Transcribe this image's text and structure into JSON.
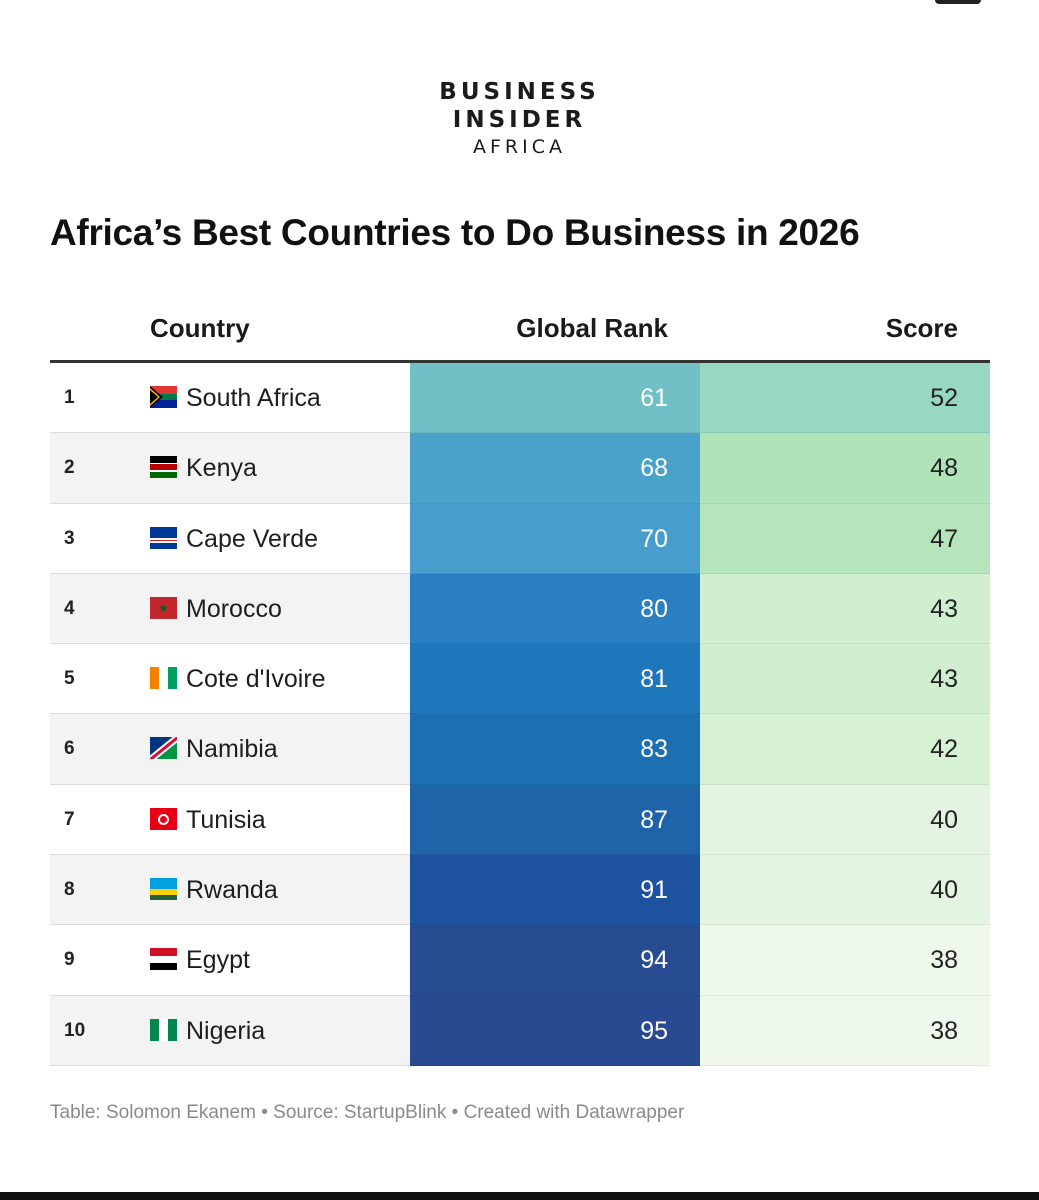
{
  "logo": {
    "line1": "BUSINESS",
    "line2": "INSIDER",
    "line3": "AFRICA"
  },
  "chart_data": {
    "type": "table",
    "title": "Africa’s Best Countries to Do Business in 2026",
    "columns": [
      "",
      "Country",
      "Global Rank",
      "Score"
    ],
    "rows": [
      {
        "n": "1",
        "country": "South Africa",
        "flag": "south-africa-flag-icon",
        "rank": 61,
        "score": 52
      },
      {
        "n": "2",
        "country": "Kenya",
        "flag": "kenya-flag-icon",
        "rank": 68,
        "score": 48
      },
      {
        "n": "3",
        "country": "Cape Verde",
        "flag": "cape-verde-flag-icon",
        "rank": 70,
        "score": 47
      },
      {
        "n": "4",
        "country": "Morocco",
        "flag": "morocco-flag-icon",
        "rank": 80,
        "score": 43
      },
      {
        "n": "5",
        "country": "Cote d'Ivoire",
        "flag": "cote-divoire-flag-icon",
        "rank": 81,
        "score": 43
      },
      {
        "n": "6",
        "country": "Namibia",
        "flag": "namibia-flag-icon",
        "rank": 83,
        "score": 42
      },
      {
        "n": "7",
        "country": "Tunisia",
        "flag": "tunisia-flag-icon",
        "rank": 87,
        "score": 40
      },
      {
        "n": "8",
        "country": "Rwanda",
        "flag": "rwanda-flag-icon",
        "rank": 91,
        "score": 40
      },
      {
        "n": "9",
        "country": "Egypt",
        "flag": "egypt-flag-icon",
        "rank": 94,
        "score": 38
      },
      {
        "n": "10",
        "country": "Nigeria",
        "flag": "nigeria-flag-icon",
        "rank": 95,
        "score": 38
      }
    ],
    "rank_colors": [
      "#72bfc6",
      "#4aa2cb",
      "#479dcc",
      "#2a7fc3",
      "#1f77bb",
      "#1c70b2",
      "#1f63a8",
      "#1d539e",
      "#274c92",
      "#294a90"
    ],
    "score_colors": [
      "#96d8c4",
      "#b0e3b7",
      "#b6e5bb",
      "#d0efd0",
      "#d0efd0",
      "#d6f1d3",
      "#e3f5e1",
      "#e3f5e1",
      "#eef9ec",
      "#eef9ec"
    ]
  },
  "footer": {
    "text": "Table: Solomon Ekanem • Source: StartupBlink • Created with Datawrapper"
  }
}
